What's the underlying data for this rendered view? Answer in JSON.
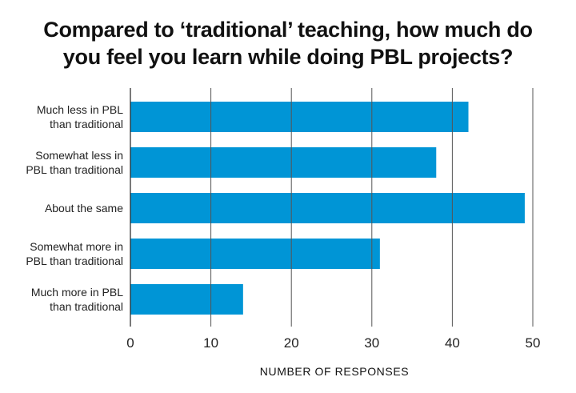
{
  "chart_data": {
    "type": "bar",
    "orientation": "horizontal",
    "title_lines": [
      "Compared to ‘traditional’ teaching, how much do",
      "you feel you learn while doing PBL projects?"
    ],
    "categories": [
      [
        "Much less in PBL",
        "than traditional"
      ],
      [
        "Somewhat less in",
        "PBL than traditional"
      ],
      [
        "About the same"
      ],
      [
        "Somewhat more in",
        "PBL than traditional"
      ],
      [
        "Much more in PBL",
        "than traditional"
      ]
    ],
    "values": [
      42,
      38,
      49,
      31,
      14
    ],
    "xlabel": "NUMBER OF RESPONSES",
    "xlim": [
      0,
      50
    ],
    "xticks": [
      0,
      10,
      20,
      30,
      40,
      50
    ],
    "grid": true,
    "bar_color": "#0095d6",
    "grid_color": "#555555"
  }
}
